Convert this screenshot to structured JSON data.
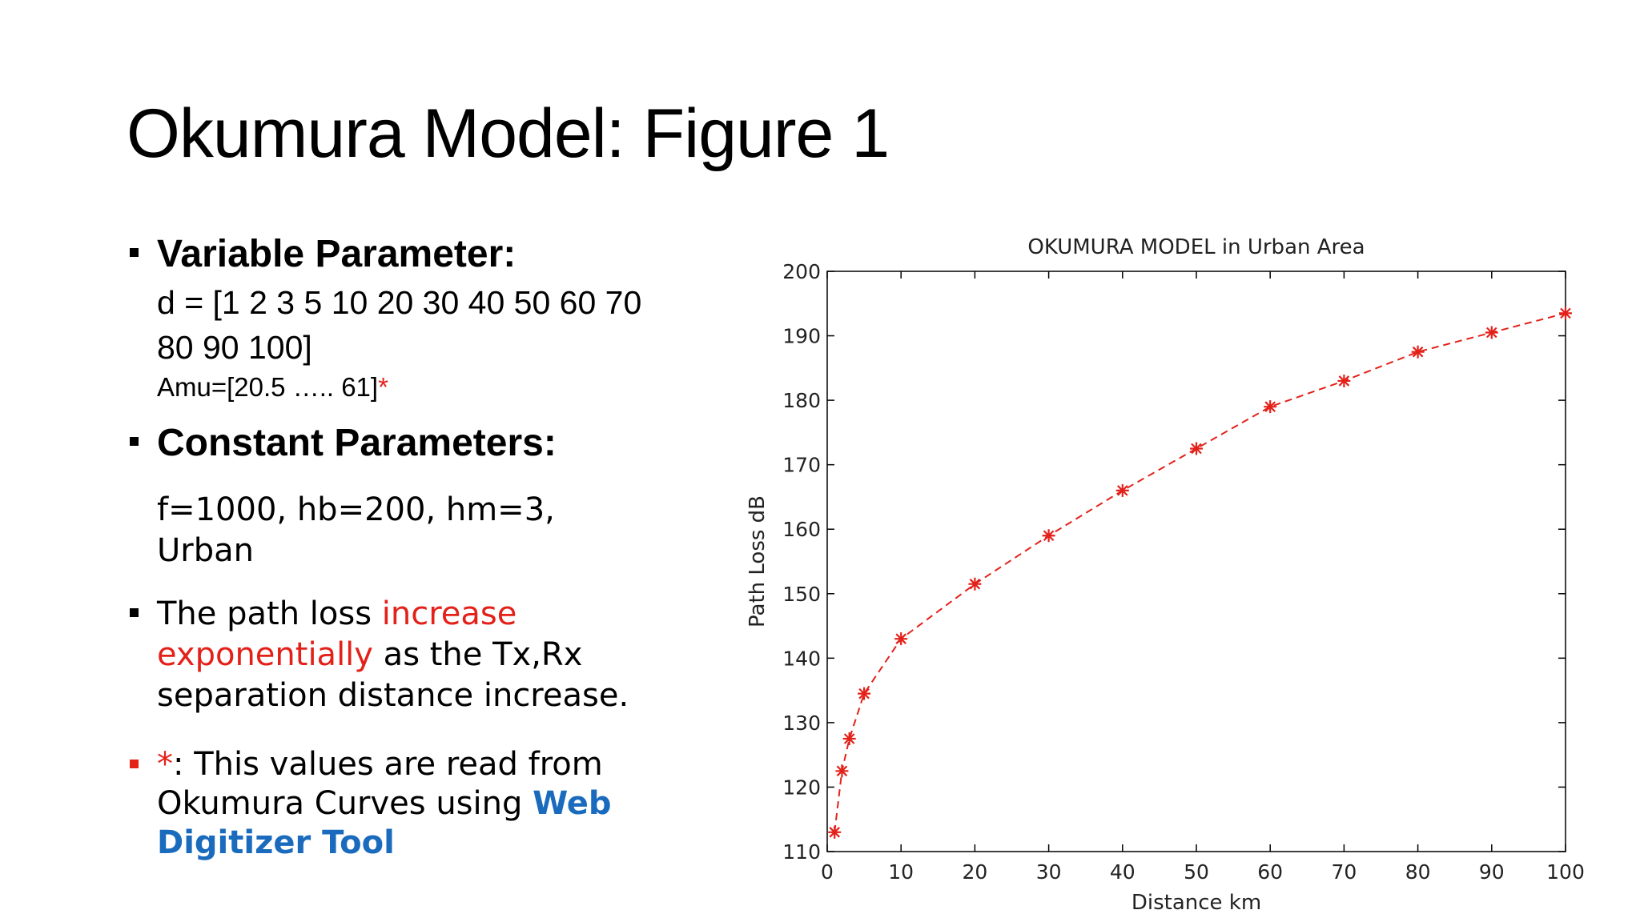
{
  "slide": {
    "title": "Okumura Model: Figure 1",
    "bullet1": {
      "heading": "Variable Parameter:",
      "line1": "d = [1 2 3 5 10 20 30 40 50 60 70",
      "line2": "80 90 100]",
      "amu_text": "Amu=[20.5 ….. 61]",
      "amu_star": "*"
    },
    "bullet2": {
      "heading": "Constant Parameters:",
      "line1": "f=1000, hb=200, hm=3,",
      "line2": "Urban"
    },
    "bullet3": {
      "prefix": "The path loss ",
      "highlight": "increase exponentially",
      "suffix": " as the Tx,Rx separation distance increase."
    },
    "bullet4": {
      "star": "*",
      "text": ": This values are read from Okumura Curves using ",
      "link": "Web Digitizer Tool"
    }
  },
  "colors": {
    "highlight_red": "#e32119",
    "link_blue": "#1a6bbd",
    "series_red": "#e32119"
  },
  "chart_data": {
    "type": "line",
    "title": "OKUMURA MODEL in Urban Area",
    "xlabel": "Distance km",
    "ylabel": "Path Loss dB",
    "xlim": [
      0,
      100
    ],
    "ylim": [
      110,
      200
    ],
    "xticks": [
      0,
      10,
      20,
      30,
      40,
      50,
      60,
      70,
      80,
      90,
      100
    ],
    "yticks": [
      110,
      120,
      130,
      140,
      150,
      160,
      170,
      180,
      190,
      200
    ],
    "grid": false,
    "line_style": "dashed",
    "marker": "*",
    "series": [
      {
        "x": [
          1,
          2,
          3,
          5,
          10,
          20,
          30,
          40,
          50,
          60,
          70,
          80,
          90,
          100
        ],
        "y": [
          113,
          122.5,
          127.5,
          134.5,
          143,
          151.5,
          159,
          166,
          172.5,
          179,
          183,
          187.5,
          190.5,
          193.5
        ]
      }
    ]
  }
}
